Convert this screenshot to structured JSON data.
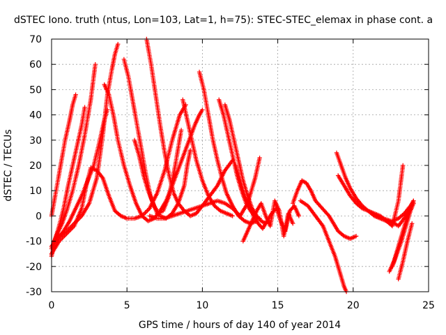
{
  "chart_data": {
    "type": "scatter",
    "title": "dSTEC Iono. truth (ntus, Lon=103, Lat=1, h=75): STEC-STEC_elemax in phase cont. a",
    "xlabel": "GPS time / hours of day 140 of year 2014",
    "ylabel": "dSTEC  / TECUs",
    "xlim": [
      0,
      25
    ],
    "ylim": [
      -30,
      70
    ],
    "xticks": [
      "0",
      "5",
      "10",
      "15",
      "20",
      "25"
    ],
    "yticks": [
      "-30",
      "-20",
      "-10",
      "0",
      "10",
      "20",
      "30",
      "40",
      "50",
      "60",
      "70"
    ],
    "grid": true,
    "marker": "+",
    "color": "#ff0000",
    "series": [
      {
        "x": [
          0.0,
          0.3,
          0.6,
          0.9,
          1.2,
          1.4,
          1.6
        ],
        "values": [
          0,
          10,
          20,
          30,
          38,
          44,
          48
        ]
      },
      {
        "x": [
          0.0,
          0.2,
          0.5,
          0.8,
          1.1,
          1.4,
          1.7,
          2.0,
          2.2
        ],
        "values": [
          -16,
          -10,
          -4,
          3,
          12,
          20,
          28,
          36,
          43
        ]
      },
      {
        "x": [
          0.0,
          0.3,
          0.7,
          1.0,
          1.4,
          1.8,
          2.2,
          2.6,
          2.9
        ],
        "values": [
          -13,
          -8,
          -3,
          2,
          10,
          20,
          32,
          46,
          60
        ]
      },
      {
        "x": [
          0.0,
          0.4,
          0.8,
          1.2,
          1.6,
          2.0,
          2.4,
          2.8,
          3.2,
          3.5,
          3.7
        ],
        "values": [
          -12,
          -9,
          -6,
          -2,
          3,
          8,
          14,
          20,
          30,
          38,
          42
        ]
      },
      {
        "x": [
          0.0,
          0.5,
          1.0,
          1.5,
          2.0,
          2.3,
          2.6,
          3.0,
          3.4,
          3.8,
          4.2,
          4.6,
          5.0,
          5.5,
          6.0,
          6.5,
          7.0,
          7.5,
          8.0,
          8.5,
          8.9
        ],
        "values": [
          -15,
          -10,
          -7,
          -4,
          3,
          12,
          19,
          18,
          15,
          8,
          2,
          0,
          -1,
          -1,
          0,
          3,
          9,
          18,
          30,
          40,
          44
        ]
      },
      {
        "x": [
          0.5,
          1.0,
          1.5,
          2.0,
          2.5,
          3.0,
          3.4,
          3.7,
          4.0,
          4.2,
          4.4
        ],
        "values": [
          -8,
          -6,
          -3,
          0,
          5,
          15,
          32,
          48,
          58,
          64,
          68
        ]
      },
      {
        "x": [
          3.5,
          3.8,
          4.1,
          4.4,
          4.8,
          5.2,
          5.6,
          6.0,
          6.4,
          6.8,
          7.2,
          7.6,
          8.0,
          8.5,
          9.0,
          9.5,
          9.8,
          10.0
        ],
        "values": [
          52,
          48,
          40,
          30,
          20,
          12,
          5,
          0,
          -2,
          -1,
          2,
          6,
          12,
          20,
          28,
          36,
          40,
          42
        ]
      },
      {
        "x": [
          4.8,
          5.1,
          5.4,
          5.7,
          6.0,
          6.3,
          6.6,
          7.0,
          7.4,
          7.8,
          8.2,
          8.6
        ],
        "values": [
          62,
          55,
          45,
          35,
          25,
          15,
          7,
          1,
          2,
          8,
          20,
          34
        ]
      },
      {
        "x": [
          5.5,
          5.8,
          6.1,
          6.4,
          6.8,
          7.2,
          7.6,
          8.0,
          8.4,
          8.8,
          9.0,
          9.2
        ],
        "values": [
          30,
          24,
          16,
          10,
          4,
          0,
          -1,
          1,
          5,
          12,
          20,
          26
        ]
      },
      {
        "x": [
          6.3,
          6.6,
          6.9,
          7.2,
          7.5,
          7.8,
          8.1,
          8.4,
          8.8,
          9.2,
          9.6,
          10.0,
          10.5,
          11.0,
          11.5,
          12.0
        ],
        "values": [
          70,
          60,
          48,
          36,
          25,
          16,
          9,
          5,
          2,
          0,
          1,
          4,
          8,
          12,
          18,
          22
        ]
      },
      {
        "x": [
          6.5,
          7.0,
          7.5,
          8.0,
          8.5,
          9.0,
          9.5,
          10.0,
          10.5,
          11.0,
          11.5,
          12.0,
          12.5,
          13.0,
          13.5,
          13.8
        ],
        "values": [
          0,
          -1,
          -1,
          0,
          1,
          2,
          3,
          4,
          5,
          6,
          5,
          3,
          0,
          5,
          15,
          23
        ]
      },
      {
        "x": [
          8.7,
          9.0,
          9.3,
          9.6,
          10.0,
          10.4,
          10.8,
          11.2,
          11.6,
          12.0
        ],
        "values": [
          46,
          38,
          30,
          22,
          14,
          8,
          4,
          2,
          1,
          0
        ]
      },
      {
        "x": [
          9.8,
          10.1,
          10.4,
          10.7,
          11.0,
          11.3,
          11.6,
          12.0,
          12.4,
          12.8,
          13.2,
          13.6
        ],
        "values": [
          57,
          50,
          40,
          30,
          22,
          15,
          9,
          4,
          0,
          -2,
          -3,
          -2
        ]
      },
      {
        "x": [
          11.1,
          11.4,
          11.7,
          12.0,
          12.3,
          12.6,
          12.9,
          13.2,
          13.5,
          13.8
        ],
        "values": [
          46,
          40,
          32,
          24,
          16,
          10,
          5,
          2,
          0,
          -1
        ]
      },
      {
        "x": [
          11.5,
          11.8,
          12.1,
          12.4,
          12.7,
          13.0,
          13.3,
          13.6,
          13.9,
          14.2
        ],
        "values": [
          44,
          38,
          30,
          22,
          14,
          8,
          3,
          0,
          -2,
          -3
        ]
      },
      {
        "x": [
          12.2,
          12.5,
          12.8,
          13.1,
          13.4,
          13.7,
          14.0,
          14.3,
          14.6,
          14.9,
          15.2,
          15.5,
          15.8,
          16.1,
          16.4
        ],
        "values": [
          20,
          14,
          8,
          4,
          0,
          -3,
          -5,
          -2,
          1,
          3,
          -2,
          -6,
          2,
          4,
          0
        ]
      },
      {
        "x": [
          12.7,
          13.0,
          13.3,
          13.6,
          13.9,
          14.2,
          14.5,
          14.8,
          15.1,
          15.4,
          15.7,
          16.0
        ],
        "values": [
          -10,
          -6,
          -2,
          2,
          5,
          0,
          -4,
          6,
          2,
          -8,
          1,
          -3
        ]
      },
      {
        "x": [
          16.0,
          16.3,
          16.6,
          16.9,
          17.2,
          17.5,
          17.8,
          18.1,
          18.4,
          18.7,
          19.0,
          19.4,
          19.8,
          20.2
        ],
        "values": [
          5,
          10,
          14,
          13,
          10,
          6,
          4,
          2,
          0,
          -3,
          -6,
          -8,
          -9,
          -8
        ]
      },
      {
        "x": [
          16.5,
          17.0,
          17.5,
          18.0,
          18.4,
          18.8,
          19.1,
          19.4,
          19.7
        ],
        "values": [
          6,
          4,
          0,
          -4,
          -10,
          -16,
          -22,
          -28,
          -32
        ]
      },
      {
        "x": [
          18.9,
          19.2,
          19.5,
          19.8,
          20.2,
          20.6,
          21.0,
          21.4,
          21.8,
          22.2,
          22.6,
          23.0,
          23.4,
          23.8,
          24.0
        ],
        "values": [
          25,
          20,
          15,
          11,
          7,
          4,
          2,
          0,
          -1,
          -2,
          -2,
          -1,
          1,
          4,
          6
        ]
      },
      {
        "x": [
          19.0,
          19.4,
          19.8,
          20.2,
          20.6,
          21.0,
          21.4,
          21.8,
          22.2,
          22.6,
          23.0,
          23.3
        ],
        "values": [
          16,
          12,
          8,
          5,
          3,
          2,
          1,
          0,
          -2,
          -4,
          6,
          20
        ]
      },
      {
        "x": [
          21.0,
          21.5,
          22.0,
          22.5,
          23.0,
          23.5,
          24.0
        ],
        "values": [
          2,
          0,
          -1,
          -2,
          -4,
          0,
          5
        ]
      },
      {
        "x": [
          22.4,
          22.7,
          23.0,
          23.3,
          23.6,
          23.9,
          24.0
        ],
        "values": [
          -22,
          -18,
          -12,
          -6,
          0,
          4,
          6
        ]
      },
      {
        "x": [
          22.6,
          22.9,
          23.2,
          23.5,
          23.8,
          24.0
        ],
        "values": [
          -20,
          -15,
          -10,
          -4,
          2,
          5
        ]
      },
      {
        "x": [
          23.0,
          23.3,
          23.6,
          23.9
        ],
        "values": [
          -25,
          -18,
          -10,
          -3
        ]
      }
    ]
  }
}
